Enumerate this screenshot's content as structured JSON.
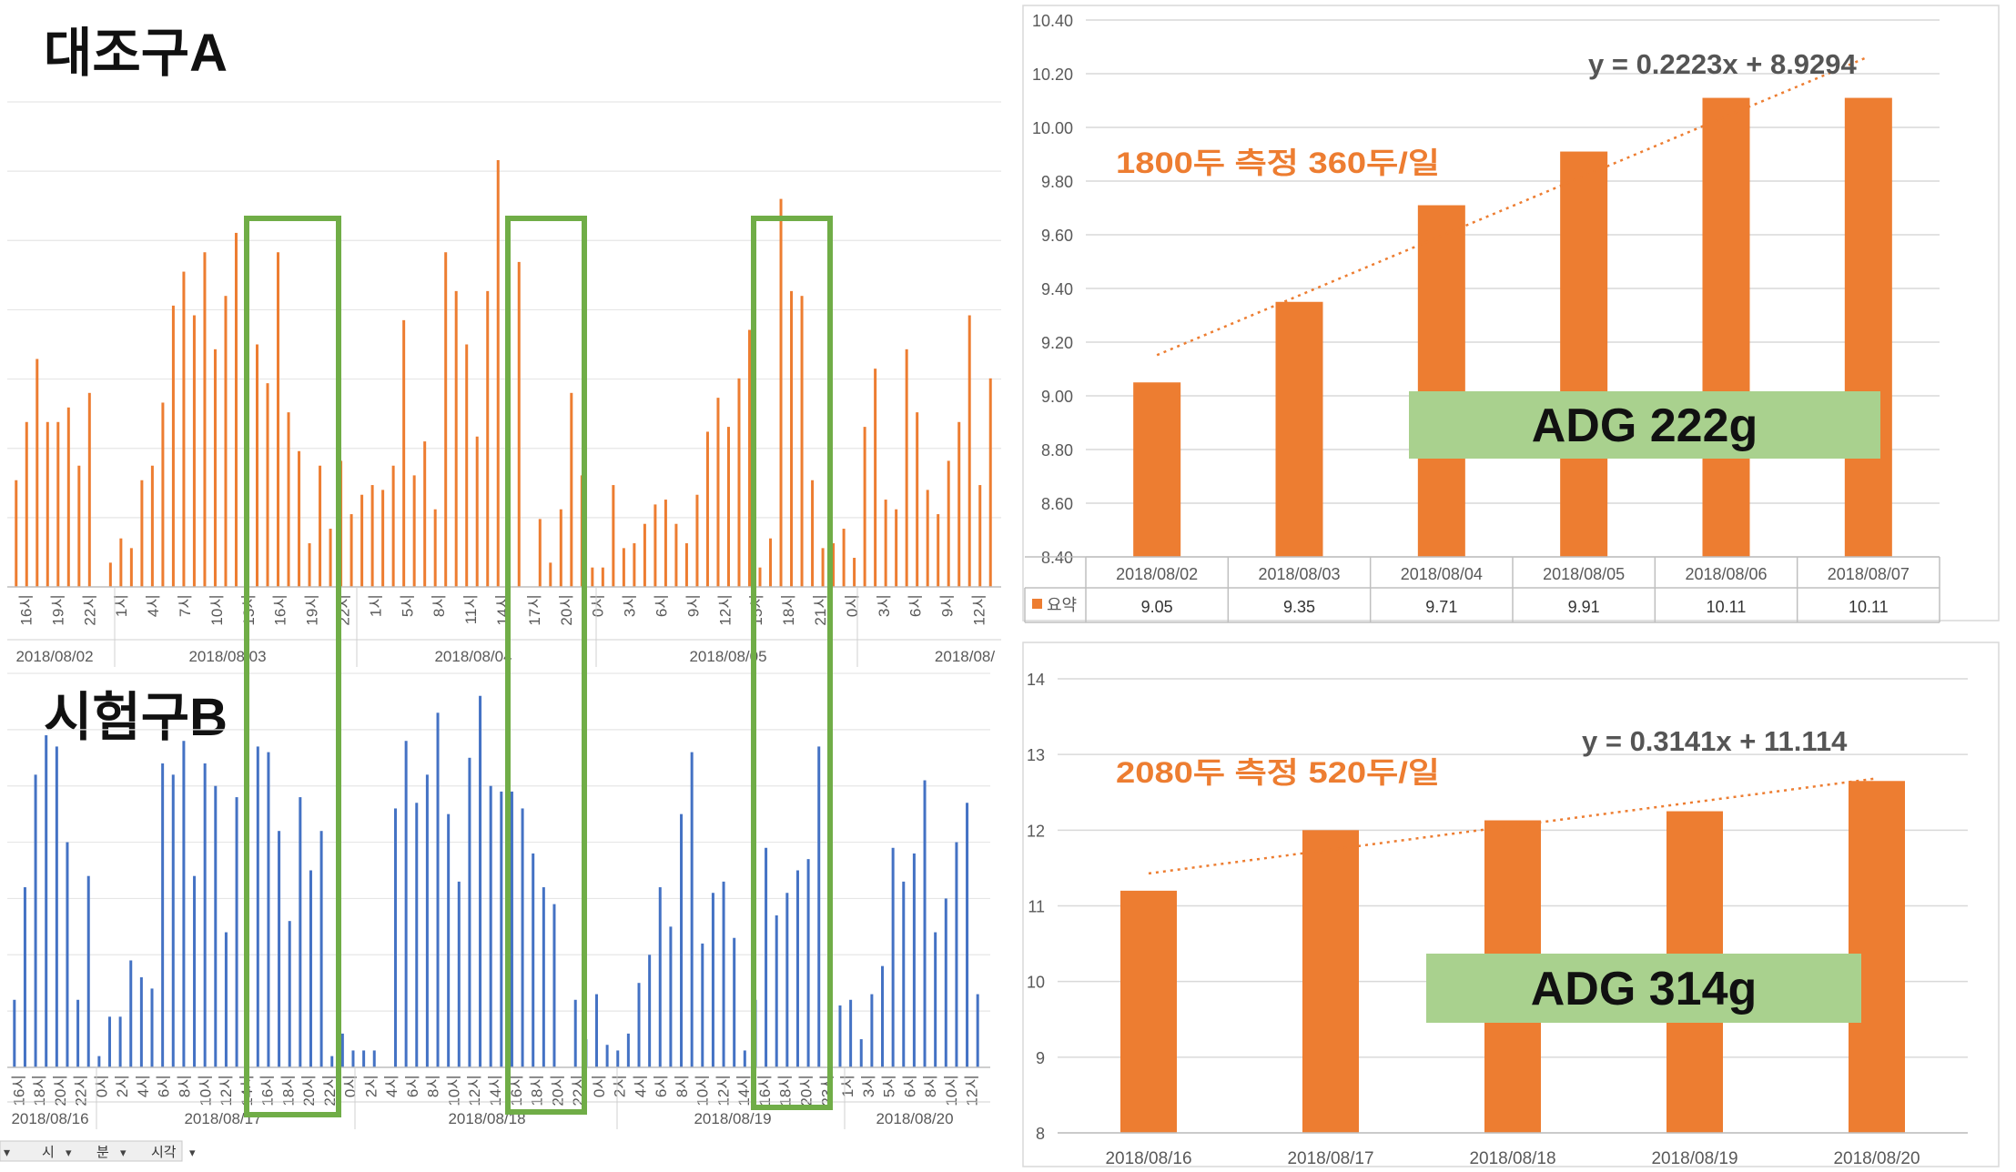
{
  "colors": {
    "orange": "#ED7D31",
    "blue": "#4472C4",
    "green_box": "#70AD47",
    "green_label": "#A9D18E",
    "grid": "#D9D9D9",
    "axis_text": "#595959"
  },
  "left": {
    "group_a_title": "대조구A",
    "group_b_title": "시험구B",
    "field_buttons": [
      "시",
      "분",
      "시각"
    ],
    "top_chart": {
      "hour_labels": [
        "16시",
        "19시",
        "22시",
        "1시",
        "4시",
        "7시",
        "10시",
        "13시",
        "16시",
        "19시",
        "22시",
        "1시",
        "5시",
        "8시",
        "11시",
        "14시",
        "17시",
        "20시",
        "0시",
        "3시",
        "6시",
        "9시",
        "12시",
        "15시",
        "18시",
        "21시",
        "0시",
        "3시",
        "6시",
        "9시",
        "12시"
      ],
      "date_labels": [
        "2018/08/02",
        "2018/08/03",
        "2018/08/04",
        "2018/08/05",
        "2018/08/"
      ]
    },
    "bottom_chart": {
      "hour_labels": [
        "16시",
        "18시",
        "20시",
        "22시",
        "0시",
        "2시",
        "4시",
        "6시",
        "8시",
        "10시",
        "12시",
        "14시",
        "16시",
        "18시",
        "20시",
        "22시",
        "0시",
        "2시",
        "4시",
        "6시",
        "8시",
        "10시",
        "12시",
        "14시",
        "16시",
        "18시",
        "20시",
        "22시",
        "0시",
        "2시",
        "4시",
        "6시",
        "8시",
        "10시",
        "12시",
        "14시",
        "16시",
        "18시",
        "20시",
        "23시",
        "1시",
        "3시",
        "5시",
        "6시",
        "8시",
        "10시",
        "12시"
      ],
      "date_labels": [
        "2018/08/16",
        "2018/08/17",
        "2018/08/18",
        "2018/08/19",
        "2018/08/20"
      ]
    }
  },
  "chart_data": [
    {
      "type": "bar",
      "title": "",
      "series": [
        {
          "name": "",
          "values": [
            2.2,
            3.4,
            4.7,
            3.4,
            3.4,
            3.7,
            2.5,
            4.0,
            0.0,
            0.5,
            1.0,
            0.8,
            2.2,
            2.5,
            3.8,
            5.8,
            6.5,
            5.6,
            6.9,
            4.9,
            6.0,
            7.3,
            5.4,
            5.0,
            4.2,
            6.9,
            3.6,
            2.8,
            0.9,
            2.5,
            1.2,
            2.6,
            1.5,
            1.9,
            2.1,
            2.0,
            2.5,
            5.5,
            2.3,
            3.0,
            1.6,
            6.9,
            6.1,
            5.0,
            3.1,
            6.1,
            8.8,
            7.5,
            6.7,
            0.0,
            1.4,
            0.5,
            1.6,
            4.0,
            2.3,
            0.4,
            0.4,
            2.1,
            0.8,
            0.9,
            1.3,
            1.7,
            1.8,
            1.3,
            0.9,
            1.9,
            3.2,
            3.9,
            3.3,
            4.3,
            5.3,
            0.4,
            1.0,
            8.0,
            6.1,
            6.0,
            2.2,
            0.8,
            0.9,
            1.2,
            0.6,
            3.3,
            4.5,
            1.8,
            1.6,
            4.9,
            3.6,
            2.0,
            1.5,
            2.6,
            3.4,
            5.6,
            2.1,
            4.3
          ]
        }
      ],
      "ylim": [
        0,
        10
      ]
    },
    {
      "type": "bar",
      "title": "",
      "series": [
        {
          "name": "",
          "values": [
            1.2,
            3.2,
            5.2,
            5.9,
            5.7,
            4.0,
            1.2,
            3.4,
            0.2,
            0.9,
            0.9,
            1.9,
            1.6,
            1.4,
            5.4,
            5.2,
            5.8,
            3.4,
            5.4,
            5.0,
            2.4,
            4.8,
            5.5,
            5.7,
            5.6,
            4.2,
            2.6,
            4.8,
            3.5,
            4.2,
            0.2,
            0.6,
            0.3,
            0.3,
            0.3,
            0.0,
            4.6,
            5.8,
            4.7,
            5.2,
            6.3,
            4.5,
            3.3,
            5.5,
            6.6,
            5.0,
            4.9,
            4.9,
            4.6,
            3.8,
            3.2,
            2.9,
            0.0,
            1.2,
            0.5,
            1.3,
            0.4,
            0.3,
            0.6,
            1.5,
            2.0,
            3.2,
            2.5,
            4.5,
            5.6,
            2.2,
            3.1,
            3.3,
            2.3,
            0.3,
            1.2,
            3.9,
            2.7,
            3.1,
            3.5,
            3.7,
            5.7,
            1.2,
            1.1,
            1.2,
            0.5,
            1.3,
            1.8,
            3.9,
            3.3,
            3.8,
            5.1,
            2.4,
            3.0,
            4.0,
            4.7,
            1.3
          ]
        }
      ],
      "ylim": [
        0,
        7
      ]
    },
    {
      "type": "bar",
      "title": "",
      "categories": [
        "2018/08/02",
        "2018/08/03",
        "2018/08/04",
        "2018/08/05",
        "2018/08/06",
        "2018/08/07"
      ],
      "series": [
        {
          "name": "요약",
          "values": [
            9.05,
            9.35,
            9.71,
            9.91,
            10.11,
            10.11
          ]
        }
      ],
      "table_values": [
        "9.05",
        "9.35",
        "9.71",
        "9.91",
        "10.11",
        "10.11"
      ],
      "y_ticks": [
        "8.40",
        "8.60",
        "8.80",
        "9.00",
        "9.20",
        "9.40",
        "9.60",
        "9.80",
        "10.00",
        "10.20",
        "10.40"
      ],
      "ylim": [
        8.4,
        10.4
      ],
      "grid": true,
      "trendline": {
        "slope": 0.2223,
        "intercept": 8.9294,
        "label": "y = 0.2223x + 8.9294"
      },
      "annotation": "1800두 측정   360두/일",
      "callout": "ADG 222g"
    },
    {
      "type": "bar",
      "title": "",
      "categories": [
        "2018/08/16",
        "2018/08/17",
        "2018/08/18",
        "2018/08/19",
        "2018/08/20"
      ],
      "series": [
        {
          "name": "",
          "values": [
            11.2,
            12.0,
            12.13,
            12.25,
            12.65
          ]
        }
      ],
      "y_ticks": [
        "8",
        "9",
        "10",
        "11",
        "12",
        "13",
        "14"
      ],
      "ylim": [
        8,
        14
      ],
      "grid": true,
      "trendline": {
        "slope": 0.3141,
        "intercept": 11.114,
        "label": "y = 0.3141x + 11.114"
      },
      "annotation": "2080두 측정   520두/일",
      "callout": "ADG 314g"
    }
  ]
}
